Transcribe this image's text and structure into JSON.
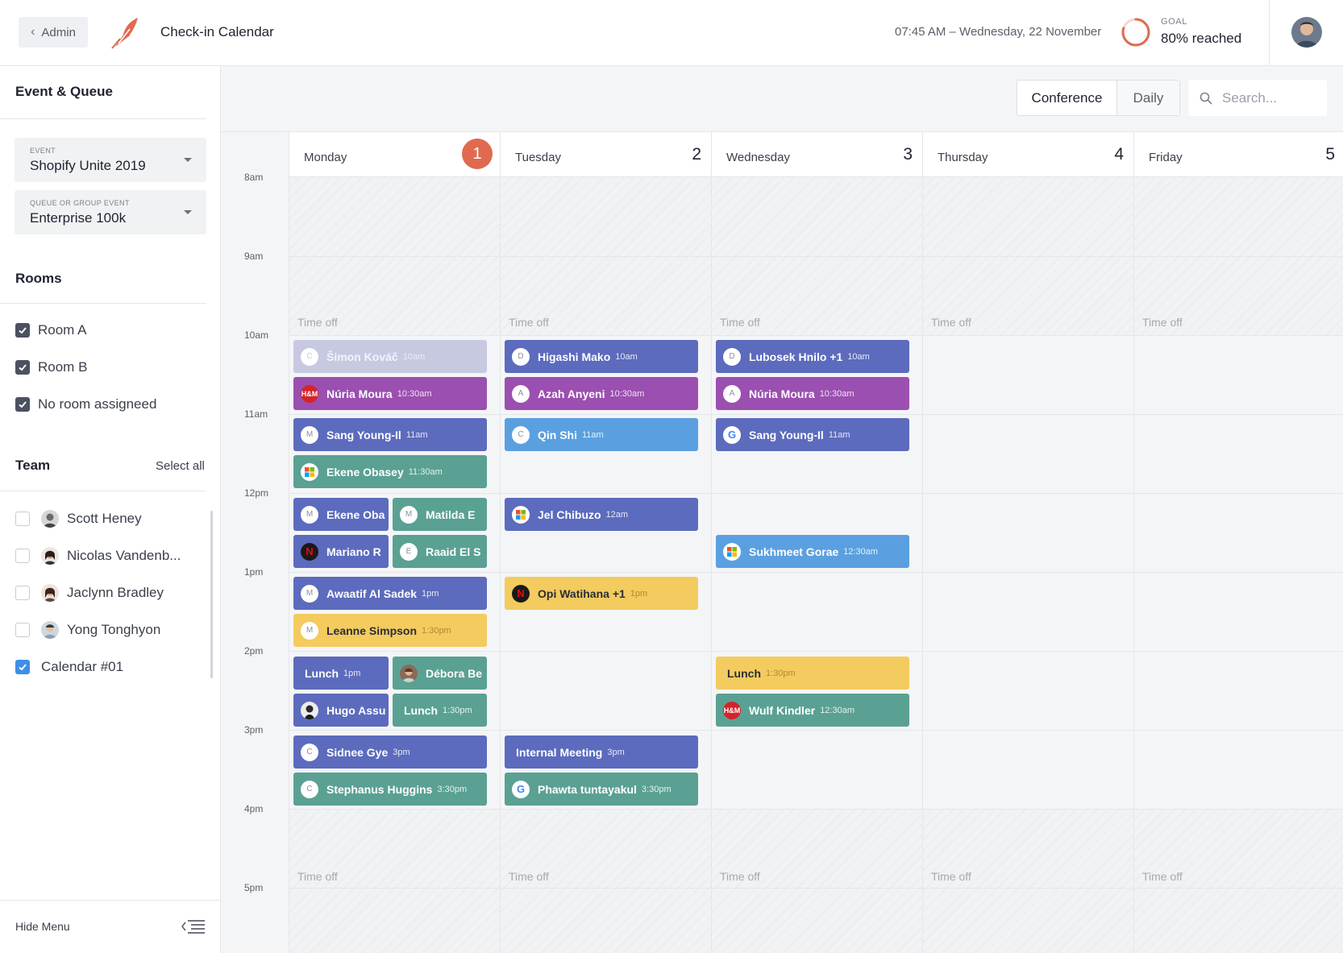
{
  "header": {
    "back_label": "Admin",
    "title": "Check-in Calendar",
    "datetime": "07:45 AM – Wednesday, 22 November",
    "goal_label": "GOAL",
    "goal_value": "80% reached",
    "goal_progress": 0.8,
    "goal_color": "#e06a4f"
  },
  "sidebar": {
    "event_queue_title": "Event & Queue",
    "event_caption": "EVENT",
    "event_value": "Shopify Unite 2019",
    "queue_caption": "QUEUE OR GROUP EVENT",
    "queue_value": "Enterprise 100k",
    "rooms_title": "Rooms",
    "rooms": [
      {
        "label": "Room A",
        "checked": true
      },
      {
        "label": "Room B",
        "checked": true
      },
      {
        "label": "No room assigneed",
        "checked": true
      }
    ],
    "team_title": "Team",
    "select_all": "Select all",
    "team": [
      {
        "label": "Scott Heney",
        "checked": false
      },
      {
        "label": "Nicolas Vandenb...",
        "checked": false
      },
      {
        "label": "Jaclynn Bradley",
        "checked": false
      },
      {
        "label": "Yong Tonghyon",
        "checked": false
      },
      {
        "label": "Calendar #01",
        "checked": true
      }
    ],
    "hide_menu": "Hide Menu"
  },
  "toolbar": {
    "views": [
      "Conference",
      "Daily"
    ],
    "active_view": "Conference",
    "search_placeholder": "Search..."
  },
  "calendar": {
    "hours": [
      "8am",
      "9am",
      "10am",
      "11am",
      "12pm",
      "1pm",
      "2pm",
      "3pm",
      "4pm",
      "5pm"
    ],
    "time_off_label": "Time off",
    "days": [
      {
        "name": "Monday",
        "num": "1",
        "today": true
      },
      {
        "name": "Tuesday",
        "num": "2",
        "today": false
      },
      {
        "name": "Wednesday",
        "num": "3",
        "today": false
      },
      {
        "name": "Thursday",
        "num": "4",
        "today": false
      },
      {
        "name": "Friday",
        "num": "5",
        "today": false
      }
    ],
    "events": {
      "monday": [
        {
          "name": "Šimon Kováč",
          "time": "10am",
          "icon": "C"
        },
        {
          "name": "Núria Moura",
          "time": "10:30am",
          "icon": "H&M"
        },
        {
          "name": "Sang Young-Il",
          "time": "11am",
          "icon": "M"
        },
        {
          "name": "Ekene Obasey",
          "time": "11:30am",
          "icon": "microsoft"
        },
        {
          "name": "Ekene Oba",
          "time": "",
          "icon": "M"
        },
        {
          "name": "Matilda E",
          "time": "",
          "icon": "M"
        },
        {
          "name": "Mariano R",
          "time": "",
          "icon": "netflix"
        },
        {
          "name": "Raaid El S",
          "time": "",
          "icon": "E"
        },
        {
          "name": "Awaatif Al Sadek",
          "time": "1pm",
          "icon": "M"
        },
        {
          "name": "Leanne Simpson",
          "time": "1:30pm",
          "icon": "M"
        },
        {
          "name": "Lunch",
          "time": "1pm",
          "icon": ""
        },
        {
          "name": "Débora Be",
          "time": "",
          "icon": "avatar"
        },
        {
          "name": "Hugo Assu",
          "time": "",
          "icon": "avatar"
        },
        {
          "name": "Lunch",
          "time": "1:30pm",
          "icon": ""
        },
        {
          "name": "Sidnee Gye",
          "time": "3pm",
          "icon": "C"
        },
        {
          "name": "Stephanus Huggins",
          "time": "3:30pm",
          "icon": "C"
        }
      ],
      "tuesday": [
        {
          "name": "Higashi Mako",
          "time": "10am",
          "icon": "D"
        },
        {
          "name": "Azah Anyeni",
          "time": "10:30am",
          "icon": "A"
        },
        {
          "name": "Qin Shi",
          "time": "11am",
          "icon": "C"
        },
        {
          "name": "Jel Chibuzo",
          "time": "12am",
          "icon": "microsoft"
        },
        {
          "name": "Opi Watihana +1",
          "time": "1pm",
          "icon": "netflix"
        },
        {
          "name": "Internal Meeting",
          "time": "3pm",
          "icon": ""
        },
        {
          "name": "Phawta tuntayakul",
          "time": "3:30pm",
          "icon": "google"
        }
      ],
      "wednesday": [
        {
          "name": "Lubosek Hnilo +1",
          "time": "10am",
          "icon": "D"
        },
        {
          "name": "Núria Moura",
          "time": "10:30am",
          "icon": "A"
        },
        {
          "name": "Sang Young-Il",
          "time": "11am",
          "icon": "google"
        },
        {
          "name": "Sukhmeet Gorae",
          "time": "12:30am",
          "icon": "microsoft"
        },
        {
          "name": "Lunch",
          "time": "1:30pm",
          "icon": ""
        },
        {
          "name": "Wulf Kindler",
          "time": "12:30am",
          "icon": "H&M"
        }
      ]
    }
  }
}
